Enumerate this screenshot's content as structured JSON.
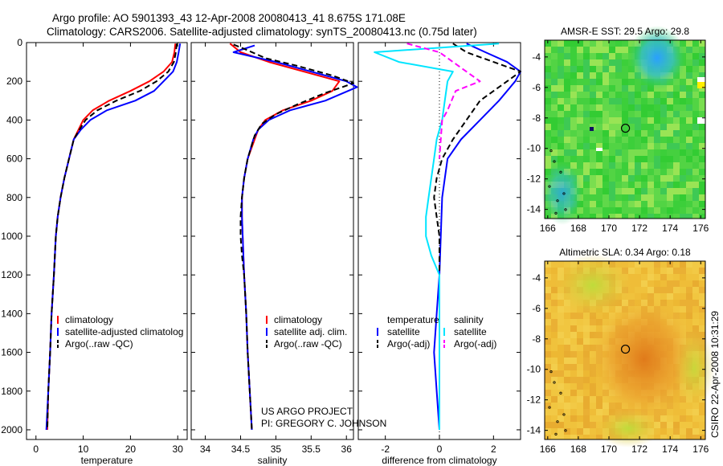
{
  "header": {
    "title_line1": "Argo profile: AO 5901393_43 12-Apr-2008 20080413_41 8.675S 171.08E",
    "title_line2": "Climatology: CARS2006. Satellite-adjusted climatology: synTS_20080413.nc (0.75d later)"
  },
  "credit": {
    "line1": "US ARGO PROJECT",
    "line2": "PI: GREGORY C. JOHNSON",
    "side": "CSIRO 22-Apr-2008 10:31:29"
  },
  "colors": {
    "climatology": "#ff0000",
    "satellite": "#0000ff",
    "argo": "#000000",
    "sal_satellite": "#00e5ff",
    "sal_argo": "#ff00ff"
  },
  "chart_data": [
    {
      "type": "line",
      "id": "temperature",
      "xlabel": "temperature",
      "xlim": [
        -2,
        32
      ],
      "ylim": [
        0,
        2050
      ],
      "y_reversed": true,
      "xticks": [
        0,
        10,
        20,
        30
      ],
      "yticks": [
        0,
        200,
        400,
        600,
        800,
        1000,
        1200,
        1400,
        1600,
        1800,
        2000
      ],
      "legend": [
        "climatology",
        "satellite-adjusted climatolog",
        "Argo(..raw -QC)"
      ],
      "series": [
        {
          "name": "climatology",
          "color": "#ff0000",
          "dash": "solid",
          "points": [
            [
              29.5,
              5
            ],
            [
              29.3,
              50
            ],
            [
              28.8,
              100
            ],
            [
              27,
              150
            ],
            [
              24,
              200
            ],
            [
              20,
              250
            ],
            [
              15.5,
              300
            ],
            [
              12,
              350
            ],
            [
              10,
              400
            ],
            [
              9,
              450
            ],
            [
              8,
              500
            ],
            [
              7,
              600
            ],
            [
              6,
              700
            ],
            [
              5.2,
              800
            ],
            [
              4.6,
              900
            ],
            [
              4.2,
              1000
            ],
            [
              3.8,
              1200
            ],
            [
              3.3,
              1400
            ],
            [
              3,
              1600
            ],
            [
              2.6,
              1800
            ],
            [
              2.4,
              2000
            ]
          ]
        },
        {
          "name": "satellite-adjusted climatolog",
          "color": "#0000ff",
          "dash": "solid",
          "points": [
            [
              30.5,
              5
            ],
            [
              30.2,
              50
            ],
            [
              29.8,
              100
            ],
            [
              29,
              150
            ],
            [
              27,
              200
            ],
            [
              25,
              250
            ],
            [
              21,
              300
            ],
            [
              15,
              350
            ],
            [
              11.5,
              400
            ],
            [
              9.5,
              450
            ],
            [
              8,
              500
            ],
            [
              7,
              600
            ],
            [
              6,
              700
            ],
            [
              5.2,
              800
            ],
            [
              4.6,
              900
            ],
            [
              4.2,
              1000
            ],
            [
              3.8,
              1200
            ],
            [
              3.3,
              1400
            ],
            [
              3,
              1600
            ],
            [
              2.6,
              1800
            ],
            [
              2.2,
              2000
            ]
          ]
        },
        {
          "name": "Argo(..raw -QC)",
          "color": "#000000",
          "dash": "dash",
          "points": [
            [
              29.8,
              5
            ],
            [
              29.6,
              50
            ],
            [
              29.2,
              100
            ],
            [
              28,
              150
            ],
            [
              25.5,
              200
            ],
            [
              22,
              250
            ],
            [
              17,
              300
            ],
            [
              13,
              350
            ],
            [
              10.5,
              400
            ],
            [
              9.2,
              450
            ],
            [
              8,
              500
            ],
            [
              7,
              600
            ],
            [
              6,
              700
            ],
            [
              5.2,
              800
            ],
            [
              4.6,
              900
            ],
            [
              4.2,
              1000
            ],
            [
              3.8,
              1200
            ],
            [
              3.3,
              1400
            ],
            [
              3,
              1600
            ],
            [
              2.6,
              1800
            ],
            [
              2.4,
              2000
            ]
          ]
        }
      ]
    },
    {
      "type": "line",
      "id": "salinity",
      "xlabel": "salinity",
      "xlim": [
        33.8,
        36.1
      ],
      "ylim": [
        0,
        2050
      ],
      "y_reversed": true,
      "xticks": [
        34,
        34.5,
        35,
        35.5,
        36
      ],
      "legend": [
        "climatology",
        "satellite adj. clim.",
        "Argo(..raw -QC)"
      ],
      "series": [
        {
          "name": "climatology",
          "color": "#ff0000",
          "dash": "solid",
          "points": [
            [
              34.35,
              5
            ],
            [
              34.5,
              50
            ],
            [
              34.9,
              100
            ],
            [
              35.4,
              150
            ],
            [
              35.9,
              200
            ],
            [
              35.8,
              250
            ],
            [
              35.5,
              300
            ],
            [
              35.1,
              350
            ],
            [
              34.85,
              400
            ],
            [
              34.75,
              450
            ],
            [
              34.7,
              500
            ],
            [
              34.6,
              600
            ],
            [
              34.55,
              700
            ],
            [
              34.52,
              800
            ],
            [
              34.52,
              900
            ],
            [
              34.53,
              1000
            ],
            [
              34.55,
              1200
            ],
            [
              34.58,
              1400
            ],
            [
              34.6,
              1600
            ],
            [
              34.63,
              1800
            ],
            [
              34.66,
              2000
            ]
          ]
        },
        {
          "name": "satellite adj. clim.",
          "color": "#0000ff",
          "dash": "solid",
          "points": [
            [
              34.7,
              15
            ],
            [
              34.4,
              50
            ],
            [
              35.0,
              100
            ],
            [
              35.5,
              150
            ],
            [
              36.0,
              200
            ],
            [
              36.15,
              230
            ],
            [
              35.7,
              300
            ],
            [
              35.2,
              350
            ],
            [
              34.9,
              400
            ],
            [
              34.75,
              450
            ],
            [
              34.68,
              500
            ],
            [
              34.6,
              600
            ],
            [
              34.55,
              700
            ],
            [
              34.52,
              800
            ],
            [
              34.52,
              900
            ],
            [
              34.53,
              1000
            ],
            [
              34.55,
              1200
            ],
            [
              34.58,
              1400
            ],
            [
              34.6,
              1600
            ],
            [
              34.63,
              1800
            ],
            [
              34.66,
              2000
            ]
          ]
        },
        {
          "name": "Argo(..raw -QC)",
          "color": "#000000",
          "dash": "dash",
          "points": [
            [
              34.4,
              10
            ],
            [
              34.6,
              40
            ],
            [
              34.85,
              80
            ],
            [
              35.3,
              120
            ],
            [
              35.8,
              170
            ],
            [
              36.1,
              210
            ],
            [
              35.7,
              260
            ],
            [
              35.3,
              320
            ],
            [
              35.0,
              370
            ],
            [
              34.8,
              420
            ],
            [
              34.7,
              480
            ],
            [
              34.6,
              600
            ],
            [
              34.55,
              700
            ],
            [
              34.52,
              800
            ],
            [
              34.5,
              900
            ],
            [
              34.5,
              1000
            ],
            [
              34.52,
              1100
            ],
            [
              34.55,
              1200
            ],
            [
              34.58,
              1400
            ],
            [
              34.6,
              1600
            ],
            [
              34.63,
              1800
            ],
            [
              34.66,
              2000
            ]
          ]
        }
      ]
    },
    {
      "type": "line",
      "id": "difference",
      "xlabel": "difference from climatology",
      "xlim": [
        -3,
        3
      ],
      "ylim": [
        0,
        2050
      ],
      "y_reversed": true,
      "xticks": [
        -2,
        0,
        2
      ],
      "legend_headers": [
        "temperature",
        "salinity"
      ],
      "legend": [
        "satellite",
        "Argo(-adj)",
        "satellite",
        "Argo(-adj)"
      ],
      "series": [
        {
          "name": "satellite",
          "group": "temperature",
          "color": "#0000ff",
          "dash": "solid",
          "points": [
            [
              1,
              5
            ],
            [
              1.7,
              50
            ],
            [
              2.5,
              100
            ],
            [
              3.0,
              150
            ],
            [
              2.8,
              200
            ],
            [
              2.2,
              300
            ],
            [
              1.5,
              400
            ],
            [
              0.8,
              500
            ],
            [
              0.3,
              600
            ],
            [
              0.1,
              800
            ],
            [
              0.05,
              1000
            ],
            [
              0,
              1200
            ],
            [
              -0.1,
              1400
            ],
            [
              -0.2,
              1600
            ],
            [
              -0.1,
              1800
            ],
            [
              0,
              2000
            ]
          ]
        },
        {
          "name": "Argo(-adj)",
          "group": "temperature",
          "color": "#000000",
          "dash": "dash",
          "points": [
            [
              0.5,
              5
            ],
            [
              1,
              50
            ],
            [
              2,
              100
            ],
            [
              3.0,
              150
            ],
            [
              2.5,
              200
            ],
            [
              1.5,
              300
            ],
            [
              1,
              400
            ],
            [
              0.5,
              500
            ],
            [
              0.1,
              600
            ],
            [
              -0.1,
              700
            ],
            [
              -0.2,
              800
            ],
            [
              -0.1,
              900
            ],
            [
              0,
              1000
            ],
            [
              0,
              1200
            ],
            [
              0,
              1400
            ],
            [
              0,
              1600
            ],
            [
              0,
              1800
            ],
            [
              0,
              2000
            ]
          ]
        },
        {
          "name": "satellite",
          "group": "salinity",
          "color": "#00e5ff",
          "dash": "solid",
          "points": [
            [
              2.2,
              5
            ],
            [
              -2.4,
              50
            ],
            [
              -1.5,
              100
            ],
            [
              0.5,
              150
            ],
            [
              0.3,
              200
            ],
            [
              0.2,
              300
            ],
            [
              0.1,
              400
            ],
            [
              -0.1,
              500
            ],
            [
              -0.2,
              600
            ],
            [
              -0.3,
              700
            ],
            [
              -0.4,
              800
            ],
            [
              -0.5,
              900
            ],
            [
              -0.5,
              1000
            ],
            [
              -0.3,
              1100
            ],
            [
              0,
              1200
            ],
            [
              0,
              1400
            ],
            [
              0,
              1600
            ],
            [
              0,
              1800
            ],
            [
              0,
              2000
            ]
          ]
        },
        {
          "name": "Argo(-adj)",
          "group": "salinity",
          "color": "#ff00ff",
          "dash": "dash",
          "points": [
            [
              -1.2,
              5
            ],
            [
              0,
              50
            ],
            [
              0.5,
              100
            ],
            [
              1.5,
              200
            ],
            [
              0.6,
              250
            ],
            [
              0.3,
              350
            ],
            [
              0.1,
              400
            ],
            [
              0.05,
              500
            ],
            [
              0,
              600
            ]
          ]
        }
      ]
    },
    {
      "type": "heatmap",
      "id": "sst-map",
      "title": "AMSR-E SST: 29.5 Argo: 29.8",
      "xlim": [
        165.8,
        176.3
      ],
      "ylim": [
        -14.6,
        -2.9
      ],
      "xticks": [
        166,
        168,
        170,
        172,
        174,
        176
      ],
      "yticks": [
        -4,
        -6,
        -8,
        -10,
        -12,
        -14
      ],
      "argo_marker": [
        171.08,
        -8.675
      ]
    },
    {
      "type": "heatmap",
      "id": "sla-map",
      "title": "Altimetric SLA: 0.34 Argo: 0.18",
      "xlim": [
        165.8,
        176.3
      ],
      "ylim": [
        -14.6,
        -2.9
      ],
      "xticks": [
        166,
        168,
        170,
        172,
        174,
        176
      ],
      "yticks": [
        -4,
        -6,
        -8,
        -10,
        -12,
        -14
      ],
      "argo_marker": [
        171.08,
        -8.675
      ]
    }
  ]
}
